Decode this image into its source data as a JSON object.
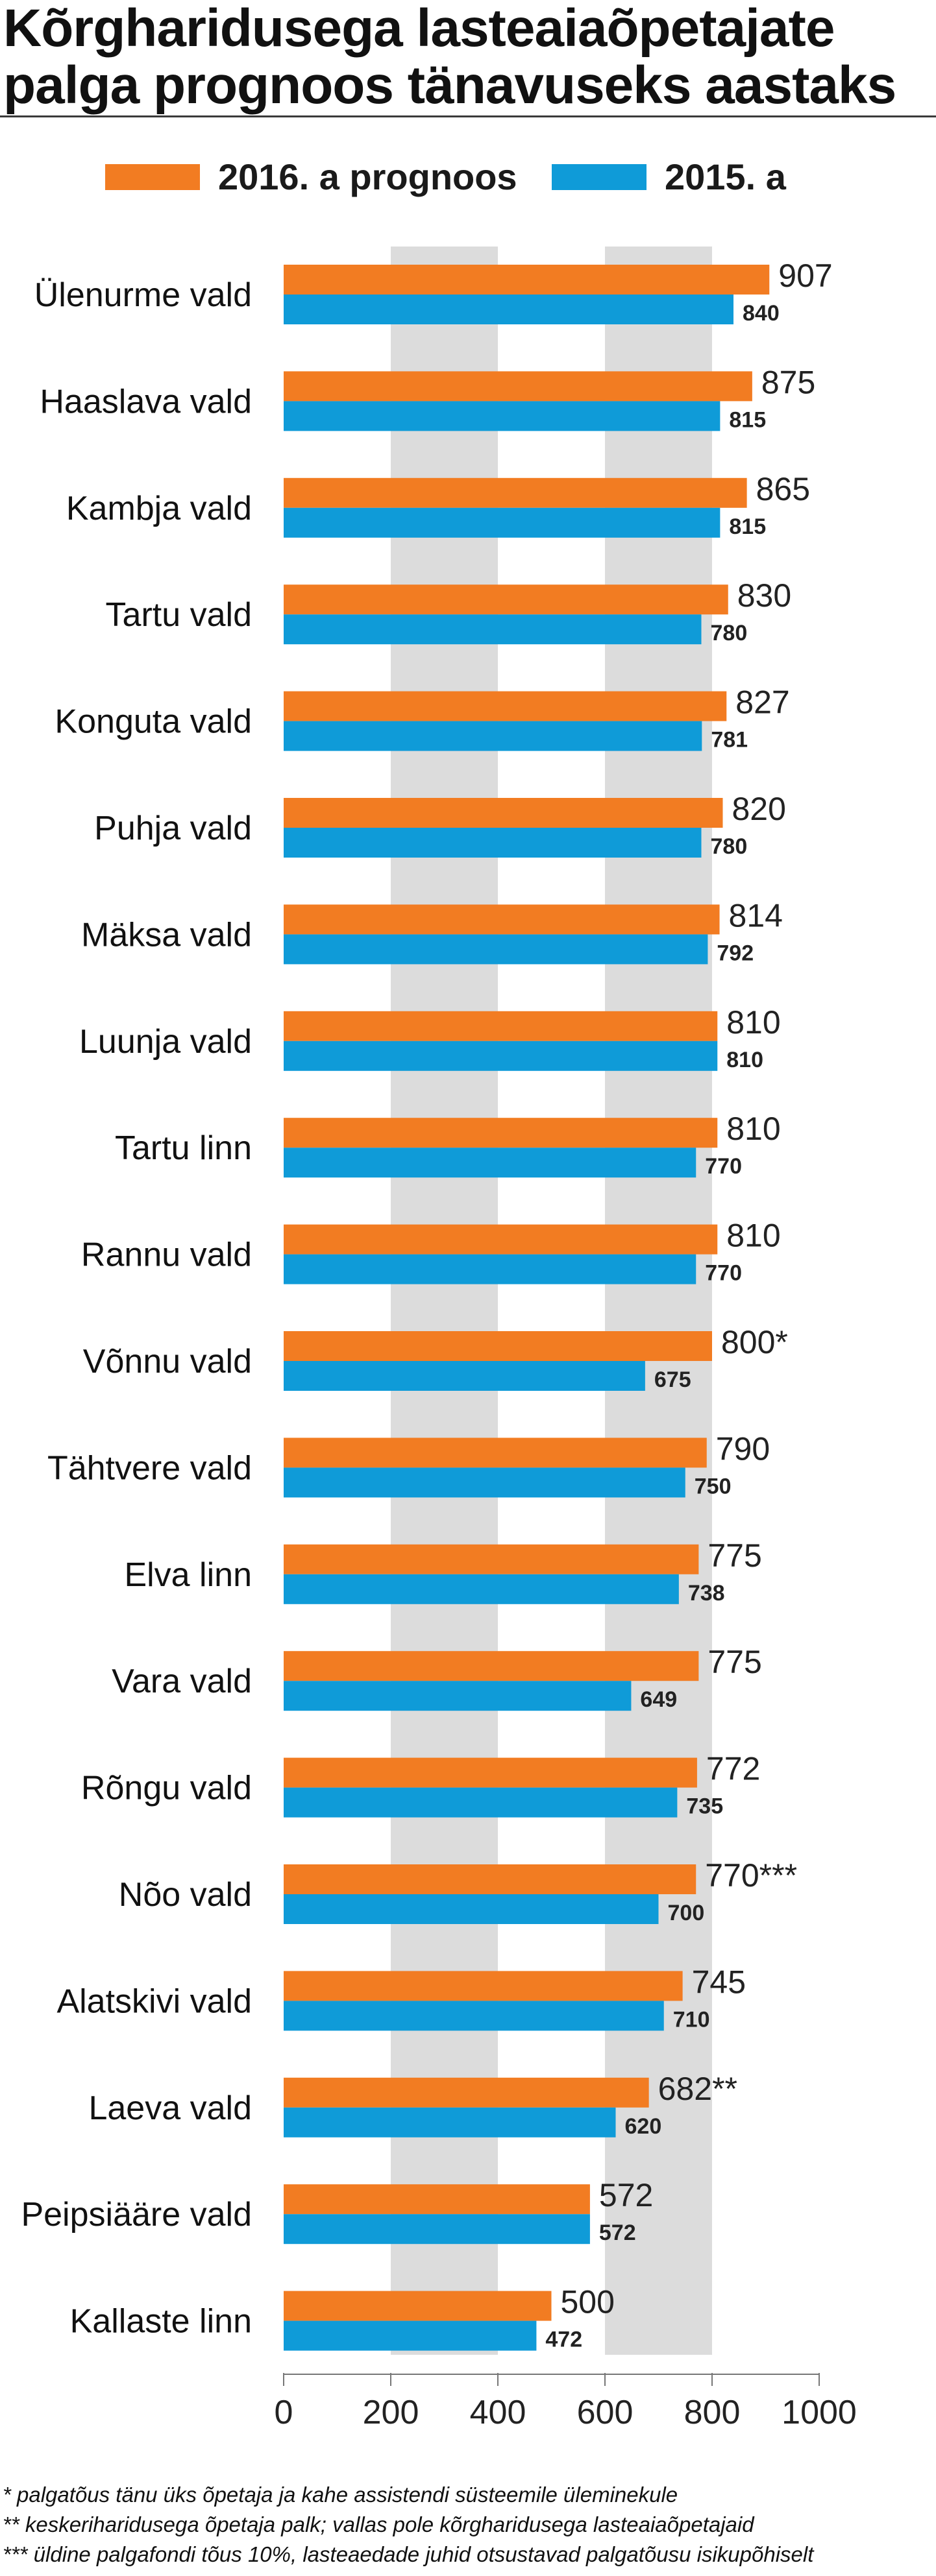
{
  "title": "Kõrgharidusega lasteaiaõpetajate palga prognoos tänavuseks aastaks",
  "legend": [
    {
      "label": "2016. a prognoos",
      "color": "#f27c22"
    },
    {
      "label": "2015. a",
      "color": "#0f9bd8"
    }
  ],
  "chart_data": {
    "type": "bar",
    "orientation": "horizontal",
    "title": "Kõrgharidusega lasteaiaõpetajate palga prognoos tänavuseks aastaks",
    "categories": [
      "Ülenurme vald",
      "Haaslava vald",
      "Kambja vald",
      "Tartu vald",
      "Konguta vald",
      "Puhja vald",
      "Mäksa vald",
      "Luunja vald",
      "Tartu linn",
      "Rannu vald",
      "Võnnu vald",
      "Tähtvere vald",
      "Elva linn",
      "Vara vald",
      "Rõngu vald",
      "Nõo vald",
      "Alatskivi vald",
      "Laeva vald",
      "Peipsiääre vald",
      "Kallaste linn"
    ],
    "series": [
      {
        "name": "2016. a prognoos",
        "color": "#f27c22",
        "values": [
          907,
          875,
          865,
          830,
          827,
          820,
          814,
          810,
          810,
          810,
          800,
          790,
          775,
          775,
          772,
          770,
          745,
          682,
          572,
          500
        ],
        "labels": [
          "907",
          "875",
          "865",
          "830",
          "827",
          "820",
          "814",
          "810",
          "810",
          "810",
          "800*",
          "790",
          "775",
          "775",
          "772",
          "770***",
          "745",
          "682**",
          "572",
          "500"
        ]
      },
      {
        "name": "2015. a",
        "color": "#0f9bd8",
        "values": [
          840,
          815,
          815,
          780,
          781,
          780,
          792,
          810,
          770,
          770,
          675,
          750,
          738,
          649,
          735,
          700,
          710,
          620,
          572,
          472
        ],
        "labels": [
          "840",
          "815",
          "815",
          "780",
          "781",
          "780",
          "792",
          "810",
          "770",
          "770",
          "675",
          "750",
          "738",
          "649",
          "735",
          "700",
          "710",
          "620",
          "572",
          "472"
        ]
      }
    ],
    "xlim": [
      0,
      1000
    ],
    "xticks": [
      "0",
      "200",
      "400",
      "600",
      "800",
      "1000"
    ],
    "grid": "alternating vertical bands",
    "band_color": "#dcdcdc",
    "legend_position": "top"
  },
  "footnotes": [
    "* palgatõus tänu üks õpetaja ja kahe assistendi süsteemile üleminekule",
    "** keskeriharidusega õpetaja palk; vallas pole kõrgharidusega lasteaiaõpetajaid",
    "*** üldine palgafondi tõus 10%, lasteaedade juhid otsustavad palgatõusu isikupõhiselt"
  ]
}
